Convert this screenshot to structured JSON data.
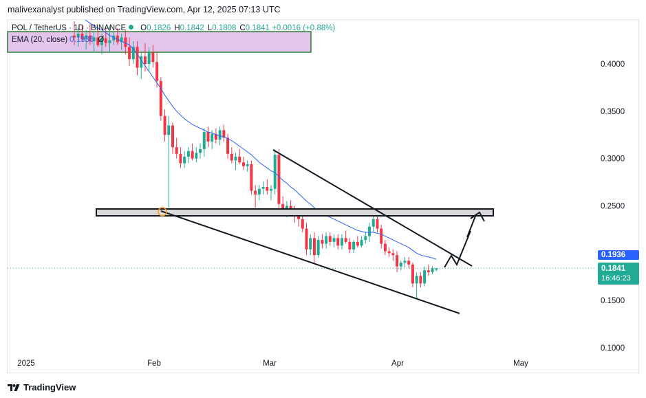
{
  "publisher": "malivexanalyst published on TradingView.com, Apr 12, 2025 07:13 UTC",
  "legend": {
    "symbol": "POL / TetherUS · 1D · BINANCE",
    "open_label": "O",
    "open": "0.1826",
    "high_label": "H",
    "high": "0.1842",
    "low_label": "L",
    "low": "0.1808",
    "close_label": "C",
    "close": "0.1841",
    "change": "+0.0016 (+0.88%)"
  },
  "ema_legend": {
    "label": "EMA (20, close)",
    "value": "0.1936",
    "extra": "Ø"
  },
  "badges": {
    "ema": "0.1936",
    "price": "0.1841",
    "countdown": "16:46:23"
  },
  "footer": {
    "brand": "TradingView"
  },
  "colors": {
    "up": "#22ab94",
    "down": "#f23645",
    "ema": "#2962ff",
    "zone_fill": "#e3c4ec",
    "zone_border": "#2e7d32"
  },
  "chart_data": {
    "type": "candlestick",
    "y_ticks": [
      "0.4000",
      "0.3500",
      "0.3000",
      "0.2500",
      "0.1500",
      "0.1000"
    ],
    "x_ticks": [
      "2025",
      "Feb",
      "Mar",
      "Apr",
      "May"
    ],
    "ylim": [
      0.09,
      0.44
    ],
    "candles": [
      [
        0.43,
        0.445,
        0.42,
        0.428
      ],
      [
        0.428,
        0.438,
        0.418,
        0.432
      ],
      [
        0.432,
        0.44,
        0.424,
        0.426
      ],
      [
        0.426,
        0.436,
        0.415,
        0.43
      ],
      [
        0.43,
        0.442,
        0.42,
        0.424
      ],
      [
        0.424,
        0.434,
        0.412,
        0.428
      ],
      [
        0.428,
        0.436,
        0.418,
        0.42
      ],
      [
        0.42,
        0.432,
        0.41,
        0.427
      ],
      [
        0.427,
        0.438,
        0.418,
        0.422
      ],
      [
        0.422,
        0.44,
        0.413,
        0.425
      ],
      [
        0.425,
        0.434,
        0.42,
        0.43
      ],
      [
        0.43,
        0.438,
        0.42,
        0.423
      ],
      [
        0.423,
        0.432,
        0.415,
        0.428
      ],
      [
        0.428,
        0.436,
        0.41,
        0.418
      ],
      [
        0.418,
        0.428,
        0.398,
        0.405
      ],
      [
        0.405,
        0.424,
        0.4,
        0.418
      ],
      [
        0.418,
        0.424,
        0.388,
        0.396
      ],
      [
        0.396,
        0.412,
        0.384,
        0.408
      ],
      [
        0.408,
        0.422,
        0.392,
        0.4
      ],
      [
        0.4,
        0.418,
        0.392,
        0.412
      ],
      [
        0.412,
        0.42,
        0.396,
        0.402
      ],
      [
        0.402,
        0.412,
        0.375,
        0.382
      ],
      [
        0.382,
        0.386,
        0.34,
        0.345
      ],
      [
        0.345,
        0.352,
        0.318,
        0.325
      ],
      [
        0.325,
        0.345,
        0.248,
        0.335
      ],
      [
        0.335,
        0.338,
        0.305,
        0.312
      ],
      [
        0.312,
        0.322,
        0.3,
        0.305
      ],
      [
        0.305,
        0.312,
        0.29,
        0.295
      ],
      [
        0.295,
        0.308,
        0.29,
        0.302
      ],
      [
        0.302,
        0.312,
        0.295,
        0.308
      ],
      [
        0.308,
        0.316,
        0.298,
        0.3
      ],
      [
        0.3,
        0.312,
        0.296,
        0.306
      ],
      [
        0.306,
        0.316,
        0.3,
        0.31
      ],
      [
        0.31,
        0.332,
        0.302,
        0.328
      ],
      [
        0.328,
        0.334,
        0.312,
        0.318
      ],
      [
        0.318,
        0.33,
        0.31,
        0.326
      ],
      [
        0.326,
        0.332,
        0.316,
        0.32
      ],
      [
        0.32,
        0.334,
        0.314,
        0.33
      ],
      [
        0.33,
        0.336,
        0.318,
        0.322
      ],
      [
        0.322,
        0.326,
        0.3,
        0.305
      ],
      [
        0.305,
        0.312,
        0.295,
        0.298
      ],
      [
        0.298,
        0.306,
        0.288,
        0.302
      ],
      [
        0.302,
        0.31,
        0.294,
        0.296
      ],
      [
        0.296,
        0.302,
        0.288,
        0.292
      ],
      [
        0.292,
        0.298,
        0.286,
        0.294
      ],
      [
        0.294,
        0.298,
        0.262,
        0.266
      ],
      [
        0.266,
        0.272,
        0.248,
        0.262
      ],
      [
        0.262,
        0.272,
        0.256,
        0.268
      ],
      [
        0.268,
        0.276,
        0.262,
        0.27
      ],
      [
        0.27,
        0.278,
        0.262,
        0.266
      ],
      [
        0.266,
        0.272,
        0.256,
        0.268
      ],
      [
        0.268,
        0.31,
        0.262,
        0.304
      ],
      [
        0.304,
        0.31,
        0.245,
        0.252
      ],
      [
        0.252,
        0.26,
        0.242,
        0.246
      ],
      [
        0.246,
        0.255,
        0.238,
        0.25
      ],
      [
        0.25,
        0.256,
        0.24,
        0.245
      ],
      [
        0.245,
        0.25,
        0.232,
        0.24
      ],
      [
        0.24,
        0.246,
        0.228,
        0.236
      ],
      [
        0.236,
        0.242,
        0.222,
        0.226
      ],
      [
        0.226,
        0.232,
        0.198,
        0.204
      ],
      [
        0.204,
        0.22,
        0.198,
        0.216
      ],
      [
        0.216,
        0.222,
        0.19,
        0.198
      ],
      [
        0.198,
        0.218,
        0.195,
        0.214
      ],
      [
        0.214,
        0.22,
        0.205,
        0.21
      ],
      [
        0.21,
        0.222,
        0.205,
        0.218
      ],
      [
        0.218,
        0.222,
        0.208,
        0.212
      ],
      [
        0.212,
        0.22,
        0.206,
        0.216
      ],
      [
        0.216,
        0.22,
        0.204,
        0.208
      ],
      [
        0.208,
        0.22,
        0.204,
        0.216
      ],
      [
        0.216,
        0.224,
        0.21,
        0.212
      ],
      [
        0.212,
        0.216,
        0.2,
        0.204
      ],
      [
        0.204,
        0.214,
        0.2,
        0.212
      ],
      [
        0.212,
        0.218,
        0.206,
        0.208
      ],
      [
        0.208,
        0.218,
        0.206,
        0.214
      ],
      [
        0.214,
        0.222,
        0.21,
        0.218
      ],
      [
        0.218,
        0.232,
        0.212,
        0.228
      ],
      [
        0.228,
        0.248,
        0.222,
        0.236
      ],
      [
        0.236,
        0.242,
        0.222,
        0.226
      ],
      [
        0.226,
        0.23,
        0.205,
        0.21
      ],
      [
        0.21,
        0.214,
        0.198,
        0.202
      ],
      [
        0.202,
        0.206,
        0.196,
        0.2
      ],
      [
        0.2,
        0.204,
        0.192,
        0.198
      ],
      [
        0.198,
        0.202,
        0.18,
        0.186
      ],
      [
        0.186,
        0.192,
        0.182,
        0.19
      ],
      [
        0.19,
        0.196,
        0.185,
        0.192
      ],
      [
        0.192,
        0.196,
        0.184,
        0.188
      ],
      [
        0.188,
        0.19,
        0.164,
        0.168
      ],
      [
        0.168,
        0.18,
        0.152,
        0.176
      ],
      [
        0.176,
        0.18,
        0.164,
        0.168
      ],
      [
        0.168,
        0.186,
        0.165,
        0.182
      ],
      [
        0.182,
        0.188,
        0.176,
        0.18
      ],
      [
        0.18,
        0.186,
        0.178,
        0.184
      ],
      [
        0.1826,
        0.1842,
        0.1808,
        0.1841
      ]
    ],
    "ema": [
      0.455,
      0.452,
      0.449,
      0.446,
      0.443,
      0.44,
      0.438,
      0.436,
      0.433,
      0.43,
      0.428,
      0.426,
      0.424,
      0.422,
      0.42,
      0.416,
      0.41,
      0.404,
      0.398,
      0.392,
      0.386,
      0.38,
      0.374,
      0.367,
      0.361,
      0.355,
      0.35,
      0.346,
      0.342,
      0.339,
      0.336,
      0.334,
      0.332,
      0.33,
      0.328,
      0.327,
      0.325,
      0.324,
      0.323,
      0.321,
      0.319,
      0.316,
      0.313,
      0.31,
      0.307,
      0.304,
      0.3,
      0.296,
      0.293,
      0.29,
      0.287,
      0.285,
      0.281,
      0.277,
      0.274,
      0.27,
      0.267,
      0.263,
      0.259,
      0.255,
      0.252,
      0.248,
      0.245,
      0.243,
      0.24,
      0.238,
      0.236,
      0.234,
      0.232,
      0.23,
      0.228,
      0.226,
      0.224,
      0.223,
      0.222,
      0.222,
      0.222,
      0.221,
      0.22,
      0.218,
      0.216,
      0.214,
      0.212,
      0.21,
      0.208,
      0.206,
      0.203,
      0.2,
      0.198,
      0.197,
      0.196,
      0.195,
      0.1936
    ]
  }
}
